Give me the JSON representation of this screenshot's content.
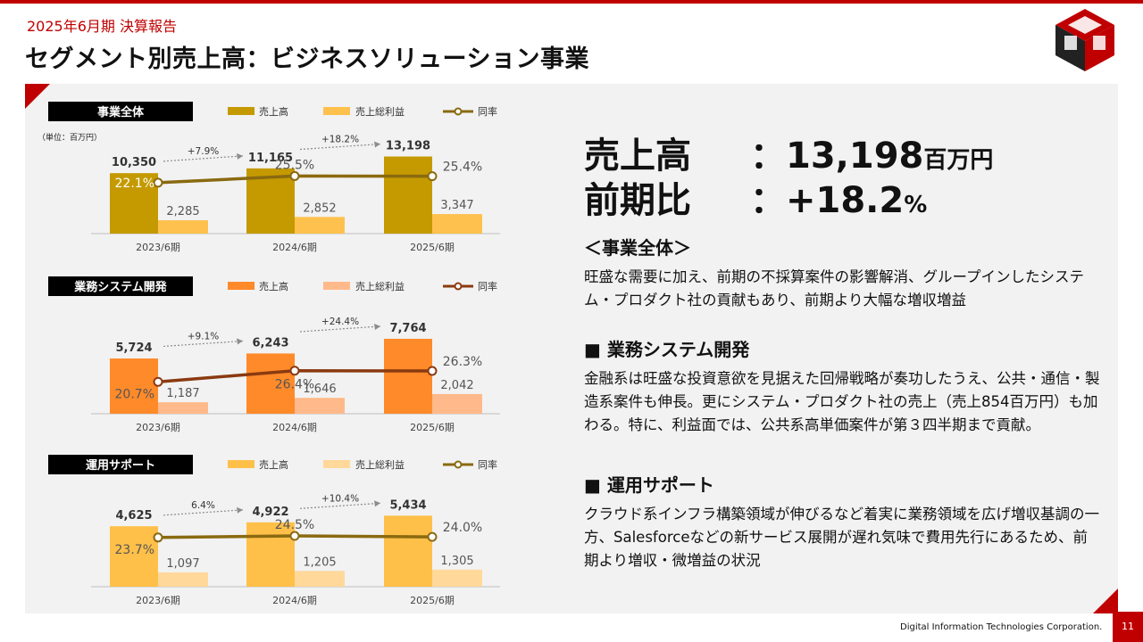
{
  "header": {
    "subtitle": "2025年6月期 決算報告",
    "title": "セグメント別売上高：ビジネスソリューション事業"
  },
  "colors": {
    "accent": "#c00000",
    "seg1_sales": "#c49a00",
    "seg1_gross": "#ffc14d",
    "seg1_rate": "#8a6a10",
    "seg2_sales": "#ff8a2a",
    "seg2_gross": "#ffb98a",
    "seg2_rate": "#8a3a10",
    "seg3_sales": "#ffc04a",
    "seg3_gross": "#ffd89a",
    "seg3_rate": "#8a6a10"
  },
  "legend_labels": {
    "sales": "売上高",
    "gross": "売上総利益",
    "rate": "同率"
  },
  "unit_note": "（単位：百万円）",
  "chart_data": [
    {
      "type": "bar",
      "title": "事業全体",
      "categories": [
        "2023/6期",
        "2024/6期",
        "2025/6期"
      ],
      "series": [
        {
          "name": "売上高",
          "values": [
            10350,
            11165,
            13198
          ],
          "labels": [
            "10,350",
            "11,165",
            "13,198"
          ]
        },
        {
          "name": "売上総利益",
          "values": [
            2285,
            2852,
            3347
          ],
          "labels": [
            "2,285",
            "2,852",
            "3,347"
          ]
        },
        {
          "name": "同率",
          "values": [
            22.1,
            25.5,
            25.4
          ],
          "labels": [
            "22.1%",
            "25.5%",
            "25.4%"
          ]
        }
      ],
      "growth": [
        "+7.9%",
        "+18.2%"
      ],
      "ylim": [
        0,
        14500
      ]
    },
    {
      "type": "bar",
      "title": "業務システム開発",
      "categories": [
        "2023/6期",
        "2024/6期",
        "2025/6期"
      ],
      "series": [
        {
          "name": "売上高",
          "values": [
            5724,
            6243,
            7764
          ],
          "labels": [
            "5,724",
            "6,243",
            "7,764"
          ]
        },
        {
          "name": "売上総利益",
          "values": [
            1187,
            1646,
            2042
          ],
          "labels": [
            "1,187",
            "1,646",
            "2,042"
          ]
        },
        {
          "name": "同率",
          "values": [
            20.7,
            26.4,
            26.3
          ],
          "labels": [
            "20.7%",
            "26.4%",
            "26.3%"
          ]
        }
      ],
      "growth": [
        "+9.1%",
        "+24.4%"
      ],
      "ylim": [
        0,
        8500
      ]
    },
    {
      "type": "bar",
      "title": "運用サポート",
      "categories": [
        "2023/6期",
        "2024/6期",
        "2025/6期"
      ],
      "series": [
        {
          "name": "売上高",
          "values": [
            4625,
            4922,
            5434
          ],
          "labels": [
            "4,625",
            "4,922",
            "5,434"
          ]
        },
        {
          "name": "売上総利益",
          "values": [
            1097,
            1205,
            1305
          ],
          "labels": [
            "1,097",
            "1,205",
            "1,305"
          ]
        },
        {
          "name": "同率",
          "values": [
            23.7,
            24.5,
            24.0
          ],
          "labels": [
            "23.7%",
            "24.5%",
            "24.0%"
          ]
        }
      ],
      "growth": [
        "6.4%",
        "+10.4%"
      ],
      "ylim": [
        0,
        6000
      ]
    }
  ],
  "summary": {
    "sales_label": "売上高",
    "sales_value": "：13,198",
    "sales_unit": "百万円",
    "yoy_label": "前期比",
    "yoy_value": "：+18.2",
    "yoy_unit": "%"
  },
  "sections": {
    "overall_heading": "＜事業全体＞",
    "overall_body": "旺盛な需要に加え、前期の不採算案件の影響解消、グループインしたシステム・プロダクト社の貢献もあり、前期より大幅な増収増益",
    "dev_heading": "■ 業務システム開発",
    "dev_body": "金融系は旺盛な投資意欲を見据えた回帰戦略が奏功したうえ、公共・通信・製造系案件も伸長。更にシステム・プロダクト社の売上（売上854百万円）も加わる。特に、利益面では、公共系高単価案件が第３四半期まで貢献。",
    "ops_heading": "■ 運用サポート",
    "ops_body": "クラウド系インフラ構築領域が伸びるなど着実に業務領域を広げ増収基調の一方、Salesforceなどの新サービス展開が遅れ気味で費用先行にあるため、前期より増収・微増益の状況"
  },
  "footer": {
    "company": "Digital Information Technologies Corporation.",
    "page": "11"
  }
}
